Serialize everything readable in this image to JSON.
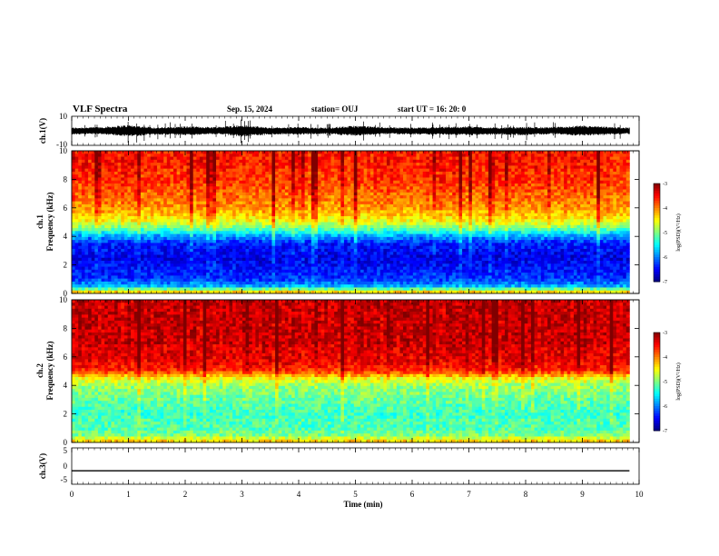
{
  "header": {
    "title": "VLF Spectra",
    "date": "Sep. 15, 2024",
    "station": "station= OUJ",
    "start": "start  UT =   16: 20: 0"
  },
  "chart_data": [
    {
      "type": "line",
      "name": "ch1-waveform",
      "ylabel": "ch.1(V)",
      "ylim": [
        -10,
        10
      ],
      "yticks": [
        "10",
        "-10"
      ],
      "x": [
        0,
        0.5,
        1.0,
        1.5,
        2.0,
        2.5,
        3.0,
        3.5,
        4.0,
        4.5,
        5.0,
        5.5,
        6.0,
        6.5,
        7.0,
        7.5,
        8.0,
        8.5,
        9.0,
        9.5,
        9.83
      ],
      "y_min": [
        -6,
        -5,
        -9,
        -6,
        -7,
        -5,
        -9,
        -6,
        -6,
        -5,
        -8,
        -5,
        -6,
        -6,
        -7,
        -6,
        -7,
        -5,
        -8,
        -6,
        -5
      ],
      "y_max": [
        5,
        6,
        9,
        5,
        7,
        6,
        9,
        5,
        6,
        5,
        8,
        6,
        5,
        6,
        7,
        5,
        6,
        6,
        8,
        6,
        5
      ]
    },
    {
      "type": "heatmap",
      "name": "ch1-spectrogram",
      "ylabel": "ch.1",
      "ylabel2": "Frequency (kHz)",
      "ylim": [
        0,
        10
      ],
      "yticks": [
        "0",
        "2",
        "4",
        "6",
        "8",
        "10"
      ],
      "freq_kHz": [
        0,
        0.5,
        1,
        1.5,
        2,
        2.5,
        3,
        3.5,
        4,
        4.5,
        5,
        5.5,
        6,
        6.5,
        7,
        7.5,
        8,
        8.5,
        9,
        9.5,
        10
      ],
      "log_psd": [
        -4.0,
        -5.8,
        -6.3,
        -6.4,
        -6.5,
        -6.6,
        -6.5,
        -6.4,
        -5.9,
        -5.2,
        -4.6,
        -4.3,
        -4.1,
        -4.0,
        -3.9,
        -3.8,
        -3.7,
        -3.7,
        -3.6,
        -3.6,
        -3.6
      ],
      "colorbar": {
        "label": "log(PSD)(V²/Hz)",
        "range": [
          -7,
          -3
        ],
        "ticks": [
          "-3",
          "-4",
          "-5",
          "-6",
          "-7"
        ]
      }
    },
    {
      "type": "heatmap",
      "name": "ch2-spectrogram",
      "ylabel": "ch.2",
      "ylabel2": "Frequency (kHz)",
      "ylim": [
        0,
        10
      ],
      "yticks": [
        "0",
        "2",
        "4",
        "6",
        "8",
        "10"
      ],
      "freq_kHz": [
        0,
        0.5,
        1,
        1.5,
        2,
        2.5,
        3,
        3.5,
        4,
        4.5,
        5,
        5.5,
        6,
        6.5,
        7,
        7.5,
        8,
        8.5,
        9,
        9.5,
        10
      ],
      "log_psd": [
        -4.2,
        -5.0,
        -5.2,
        -5.2,
        -5.3,
        -5.2,
        -5.1,
        -5.0,
        -4.9,
        -4.5,
        -3.7,
        -3.5,
        -3.4,
        -3.4,
        -3.3,
        -3.3,
        -3.3,
        -3.3,
        -3.3,
        -3.3,
        -3.3
      ],
      "colorbar": {
        "label": "log(PSD)(V²/Hz)",
        "range": [
          -7,
          -3
        ],
        "ticks": [
          "-3",
          "-4",
          "-5",
          "-6",
          "-7"
        ]
      }
    },
    {
      "type": "line",
      "name": "ch3-voltage",
      "ylabel": "ch.3(V)",
      "ylim": [
        -5,
        5
      ],
      "yticks": [
        "5",
        "0",
        "-5"
      ],
      "x": [
        0,
        9.83
      ],
      "y": [
        -1.3,
        -1.3
      ]
    }
  ],
  "xaxis": {
    "label": "Time  (min)",
    "range": [
      0,
      10
    ],
    "ticks": [
      "0",
      "1",
      "2",
      "3",
      "4",
      "5",
      "6",
      "7",
      "8",
      "9",
      "10"
    ]
  }
}
